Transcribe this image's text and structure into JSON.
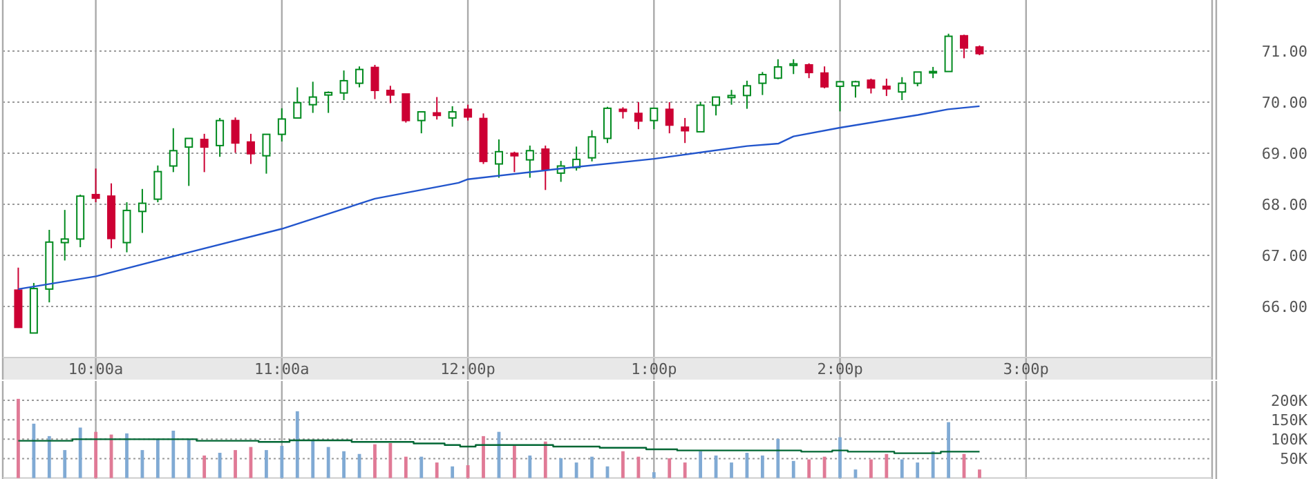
{
  "chart_data": [
    {
      "type": "candlestick",
      "x": [
        9.5833,
        9.6667,
        9.75,
        9.8333,
        9.9167,
        10,
        10.0833,
        10.1667,
        10.25,
        10.3333,
        10.4167,
        10.5,
        10.5833,
        10.6667,
        10.75,
        10.8333,
        10.9167,
        11,
        11.0833,
        11.1667,
        11.25,
        11.3333,
        11.4167,
        11.5,
        11.5833,
        11.6667,
        11.75,
        11.8333,
        11.9167,
        12,
        12.0833,
        12.1667,
        12.25,
        12.3333,
        12.4167,
        12.5,
        12.5833,
        12.6667,
        12.75,
        12.8333,
        12.9167,
        13,
        13.0833,
        13.1667,
        13.25,
        13.3333,
        13.4167,
        13.5,
        13.5833,
        13.6667,
        13.75,
        13.8333,
        13.9167,
        14,
        14.0833,
        14.1667,
        14.25,
        14.3333,
        14.4167,
        14.5,
        14.5833,
        14.6667,
        14.75
      ],
      "ohlc": [
        [
          66.32,
          66.76,
          65.58,
          65.59
        ],
        [
          65.48,
          66.46,
          65.48,
          66.35
        ],
        [
          66.34,
          67.5,
          66.08,
          67.26
        ],
        [
          67.25,
          67.89,
          66.9,
          67.32
        ],
        [
          67.32,
          68.19,
          67.16,
          68.16
        ],
        [
          68.19,
          68.7,
          68.04,
          68.12
        ],
        [
          68.16,
          68.41,
          67.14,
          67.33
        ],
        [
          67.25,
          68.04,
          67.06,
          67.88
        ],
        [
          67.86,
          68.3,
          67.44,
          68.02
        ],
        [
          68.1,
          68.76,
          68.04,
          68.64
        ],
        [
          68.75,
          69.49,
          68.63,
          69.05
        ],
        [
          69.12,
          69.29,
          68.36,
          69.29
        ],
        [
          69.27,
          69.38,
          68.63,
          69.12
        ],
        [
          69.15,
          69.69,
          68.93,
          69.64
        ],
        [
          69.64,
          69.7,
          69.01,
          69.2
        ],
        [
          69.22,
          69.38,
          68.79,
          68.99
        ],
        [
          68.95,
          69.37,
          68.6,
          69.37
        ],
        [
          69.37,
          69.88,
          69.23,
          69.67
        ],
        [
          69.69,
          70.29,
          69.69,
          69.99
        ],
        [
          69.95,
          70.4,
          69.79,
          70.1
        ],
        [
          70.14,
          70.21,
          69.79,
          70.19
        ],
        [
          70.18,
          70.62,
          70.04,
          70.42
        ],
        [
          70.37,
          70.7,
          70.29,
          70.64
        ],
        [
          70.68,
          70.73,
          70.06,
          70.23
        ],
        [
          70.23,
          70.32,
          69.98,
          70.14
        ],
        [
          70.16,
          70.16,
          69.6,
          69.64
        ],
        [
          69.64,
          69.81,
          69.39,
          69.81
        ],
        [
          69.79,
          70.1,
          69.66,
          69.74
        ],
        [
          69.69,
          69.92,
          69.52,
          69.81
        ],
        [
          69.86,
          69.95,
          69.64,
          69.71
        ],
        [
          69.68,
          69.78,
          68.79,
          68.84
        ],
        [
          68.79,
          69.27,
          68.52,
          69.03
        ],
        [
          69.0,
          69.03,
          68.63,
          68.95
        ],
        [
          68.87,
          69.15,
          68.52,
          69.05
        ],
        [
          69.08,
          69.15,
          68.28,
          68.68
        ],
        [
          68.61,
          68.85,
          68.44,
          68.75
        ],
        [
          68.72,
          69.13,
          68.66,
          68.88
        ],
        [
          68.91,
          69.45,
          68.84,
          69.32
        ],
        [
          69.29,
          69.91,
          69.2,
          69.88
        ],
        [
          69.86,
          69.9,
          69.68,
          69.82
        ],
        [
          69.78,
          70.0,
          69.47,
          69.63
        ],
        [
          69.64,
          69.88,
          69.47,
          69.88
        ],
        [
          69.86,
          70.0,
          69.39,
          69.55
        ],
        [
          69.51,
          69.69,
          69.2,
          69.44
        ],
        [
          69.42,
          70.0,
          69.42,
          69.94
        ],
        [
          69.94,
          70.1,
          69.74,
          70.1
        ],
        [
          70.09,
          70.24,
          69.95,
          70.13
        ],
        [
          70.13,
          70.42,
          69.87,
          70.32
        ],
        [
          70.37,
          70.59,
          70.14,
          70.54
        ],
        [
          70.47,
          70.84,
          70.45,
          70.69
        ],
        [
          70.72,
          70.84,
          70.55,
          70.75
        ],
        [
          70.73,
          70.76,
          70.47,
          70.58
        ],
        [
          70.57,
          70.7,
          70.27,
          70.3
        ],
        [
          70.31,
          70.4,
          69.82,
          70.4
        ],
        [
          70.32,
          70.42,
          70.09,
          70.4
        ],
        [
          70.43,
          70.46,
          70.17,
          70.28
        ],
        [
          70.31,
          70.46,
          70.12,
          70.26
        ],
        [
          70.2,
          70.49,
          70.04,
          70.37
        ],
        [
          70.37,
          70.59,
          70.31,
          70.59
        ],
        [
          70.58,
          70.69,
          70.47,
          70.6
        ],
        [
          70.6,
          71.34,
          70.6,
          71.29
        ],
        [
          71.3,
          71.32,
          70.86,
          71.06
        ],
        [
          71.08,
          71.11,
          70.92,
          70.95
        ]
      ],
      "colors": [
        "#cc0033",
        "#008a1e",
        "#008a1e",
        "#008a1e",
        "#008a1e",
        "#cc0033",
        "#cc0033",
        "#008a1e",
        "#008a1e",
        "#008a1e",
        "#008a1e",
        "#008a1e",
        "#cc0033",
        "#008a1e",
        "#cc0033",
        "#cc0033",
        "#008a1e",
        "#008a1e",
        "#008a1e",
        "#008a1e",
        "#008a1e",
        "#008a1e",
        "#008a1e",
        "#cc0033",
        "#cc0033",
        "#cc0033",
        "#008a1e",
        "#cc0033",
        "#008a1e",
        "#cc0033",
        "#cc0033",
        "#008a1e",
        "#cc0033",
        "#008a1e",
        "#cc0033",
        "#008a1e",
        "#008a1e",
        "#008a1e",
        "#008a1e",
        "#cc0033",
        "#cc0033",
        "#008a1e",
        "#cc0033",
        "#cc0033",
        "#008a1e",
        "#008a1e",
        "#008a1e",
        "#008a1e",
        "#008a1e",
        "#008a1e",
        "#008a1e",
        "#cc0033",
        "#cc0033",
        "#008a1e",
        "#008a1e",
        "#cc0033",
        "#cc0033",
        "#008a1e",
        "#008a1e",
        "#008a1e",
        "#008a1e",
        "#cc0033",
        "#cc0033"
      ],
      "series": [
        {
          "type": "line",
          "color": "#2255cc",
          "x": [
            9.5833,
            10,
            10.5,
            11,
            11.5,
            11.95,
            12,
            12.5,
            13,
            13.5,
            13.67,
            13.75,
            14,
            14.42,
            14.58,
            14.75
          ],
          "values": [
            66.34,
            66.59,
            67.06,
            67.52,
            68.11,
            68.42,
            68.49,
            68.7,
            68.89,
            69.14,
            69.19,
            69.33,
            69.5,
            69.75,
            69.86,
            69.92
          ]
        }
      ],
      "xlim": [
        9.5,
        16
      ],
      "xticks": [
        {
          "value": 10,
          "label": "10:00a"
        },
        {
          "value": 11,
          "label": "11:00a"
        },
        {
          "value": 12,
          "label": "12:00p"
        },
        {
          "value": 13,
          "label": "1:00p"
        },
        {
          "value": 14,
          "label": "2:00p"
        },
        {
          "value": 15,
          "label": "3:00p"
        }
      ],
      "ylim": [
        65,
        72
      ],
      "yticks": [
        {
          "value": 66,
          "label": "66.00"
        },
        {
          "value": 67,
          "label": "67.00"
        },
        {
          "value": 68,
          "label": "68.00"
        },
        {
          "value": 69,
          "label": "69.00"
        },
        {
          "value": 70,
          "label": "70.00"
        },
        {
          "value": 71,
          "label": "71.00"
        }
      ],
      "grid": true
    },
    {
      "type": "bar",
      "x": [
        9.5833,
        9.6667,
        9.75,
        9.8333,
        9.9167,
        10,
        10.0833,
        10.1667,
        10.25,
        10.3333,
        10.4167,
        10.5,
        10.5833,
        10.6667,
        10.75,
        10.8333,
        10.9167,
        11,
        11.0833,
        11.1667,
        11.25,
        11.3333,
        11.4167,
        11.5,
        11.5833,
        11.6667,
        11.75,
        11.8333,
        11.9167,
        12,
        12.0833,
        12.1667,
        12.25,
        12.3333,
        12.4167,
        12.5,
        12.5833,
        12.6667,
        12.75,
        12.8333,
        12.9167,
        13,
        13.0833,
        13.1667,
        13.25,
        13.3333,
        13.4167,
        13.5,
        13.5833,
        13.6667,
        13.75,
        13.8333,
        13.9167,
        14,
        14.0833,
        14.1667,
        14.25,
        14.3333,
        14.4167,
        14.5,
        14.5833,
        14.6667,
        14.75
      ],
      "values": [
        204000,
        140000,
        108000,
        72000,
        130000,
        119000,
        112000,
        115000,
        72000,
        100000,
        122000,
        100000,
        58000,
        65000,
        72000,
        80000,
        72000,
        83000,
        172000,
        96000,
        80000,
        69000,
        62000,
        87000,
        90000,
        55000,
        55000,
        40000,
        30000,
        33000,
        108000,
        119000,
        83000,
        58000,
        94000,
        51000,
        40000,
        55000,
        30000,
        69000,
        55000,
        15000,
        51000,
        40000,
        69000,
        58000,
        40000,
        65000,
        58000,
        101000,
        44000,
        48000,
        55000,
        105000,
        22000,
        48000,
        62000,
        48000,
        40000,
        69000,
        144000,
        62000,
        22000
      ],
      "colors": [
        "#e07a96",
        "#80aad4",
        "#80aad4",
        "#80aad4",
        "#80aad4",
        "#e07a96",
        "#e07a96",
        "#80aad4",
        "#80aad4",
        "#80aad4",
        "#80aad4",
        "#80aad4",
        "#e07a96",
        "#80aad4",
        "#e07a96",
        "#e07a96",
        "#80aad4",
        "#80aad4",
        "#80aad4",
        "#80aad4",
        "#80aad4",
        "#80aad4",
        "#80aad4",
        "#e07a96",
        "#e07a96",
        "#e07a96",
        "#80aad4",
        "#e07a96",
        "#80aad4",
        "#e07a96",
        "#e07a96",
        "#80aad4",
        "#e07a96",
        "#80aad4",
        "#e07a96",
        "#80aad4",
        "#80aad4",
        "#80aad4",
        "#80aad4",
        "#e07a96",
        "#e07a96",
        "#80aad4",
        "#e07a96",
        "#e07a96",
        "#80aad4",
        "#80aad4",
        "#80aad4",
        "#80aad4",
        "#80aad4",
        "#80aad4",
        "#80aad4",
        "#e07a96",
        "#e07a96",
        "#80aad4",
        "#80aad4",
        "#e07a96",
        "#e07a96",
        "#80aad4",
        "#80aad4",
        "#80aad4",
        "#80aad4",
        "#e07a96",
        "#e07a96"
      ],
      "series": [
        {
          "type": "step",
          "color": "#006633",
          "x": [
            9.5833,
            9.875,
            10.5417,
            10.875,
            11.0417,
            11.375,
            11.7083,
            11.875,
            11.9583,
            12.0417,
            12.4583,
            12.7083,
            12.9583,
            13.125,
            13.7917,
            13.9583,
            14.0417,
            14.2917,
            14.5417,
            14.75
          ],
          "values": [
            96000,
            100000,
            96000,
            93000,
            97000,
            93000,
            89000,
            85000,
            81000,
            85000,
            81000,
            78000,
            74000,
            71000,
            68000,
            71000,
            68000,
            64000,
            68000,
            68000
          ]
        }
      ],
      "xlim": [
        9.5,
        16
      ],
      "xticks": [
        {
          "value": 10,
          "label": null
        },
        {
          "value": 11,
          "label": null
        },
        {
          "value": 12,
          "label": null
        },
        {
          "value": 13,
          "label": null
        },
        {
          "value": 14,
          "label": null
        },
        {
          "value": 15,
          "label": null
        }
      ],
      "ylim": [
        0,
        250000
      ],
      "yticks": [
        {
          "value": 50000,
          "label": "50K"
        },
        {
          "value": 100000,
          "label": "100K"
        },
        {
          "value": 150000,
          "label": "150K"
        },
        {
          "value": 200000,
          "label": "200K"
        }
      ],
      "grid": true,
      "tick_labels": "y"
    }
  ]
}
